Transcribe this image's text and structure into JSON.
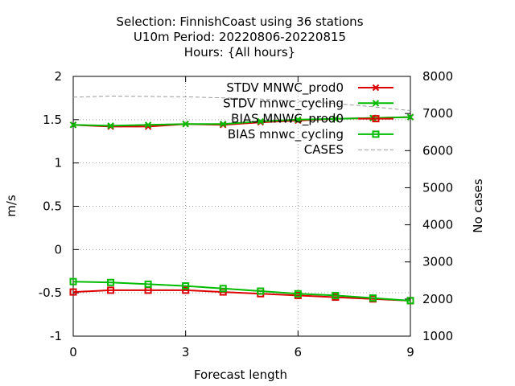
{
  "chart_data": {
    "type": "line",
    "title": [
      "Selection: FinnishCoast using    36 stations",
      "U10m   Period: 20220806-20220815",
      "Hours: {All hours}"
    ],
    "xlabel": "Forecast length",
    "ylabel": "m/s",
    "y2label": "No cases",
    "xlim": [
      0,
      9
    ],
    "ylim": [
      -1,
      2
    ],
    "y2lim": [
      1000,
      8000
    ],
    "x_ticks": [
      "0",
      "3",
      "6",
      "9"
    ],
    "y_ticks": [
      "2",
      "1.5",
      "1",
      "0.5",
      "0",
      "-0.5",
      "-1"
    ],
    "y2_ticks": [
      "8000",
      "7000",
      "6000",
      "5000",
      "4000",
      "3000",
      "2000",
      "1000"
    ],
    "grid": true,
    "legend_position": "top-right",
    "x": [
      0,
      1,
      2,
      3,
      4,
      5,
      6,
      7,
      8,
      9
    ],
    "series": [
      {
        "name": "STDV MNWC_prod0",
        "axis": "left",
        "color": "#dd0000",
        "marker": "cross",
        "values": [
          1.44,
          1.42,
          1.42,
          1.45,
          1.44,
          1.47,
          1.49,
          1.51,
          1.52,
          1.53
        ]
      },
      {
        "name": "STDV mnwc_cycling",
        "axis": "left",
        "color": "#00bb00",
        "marker": "cross",
        "values": [
          1.44,
          1.43,
          1.44,
          1.45,
          1.45,
          1.48,
          1.5,
          1.51,
          1.52,
          1.53
        ]
      },
      {
        "name": "BIAS MNWC_prod0",
        "axis": "left",
        "color": "#dd0000",
        "marker": "square",
        "values": [
          -0.49,
          -0.47,
          -0.47,
          -0.47,
          -0.49,
          -0.51,
          -0.53,
          -0.55,
          -0.57,
          -0.59
        ]
      },
      {
        "name": "BIAS mnwc_cycling",
        "axis": "left",
        "color": "#00bb00",
        "marker": "square",
        "values": [
          -0.37,
          -0.38,
          -0.4,
          -0.42,
          -0.45,
          -0.48,
          -0.51,
          -0.53,
          -0.56,
          -0.59
        ]
      },
      {
        "name": "CASES",
        "axis": "right",
        "color": "#999999",
        "marker": "none",
        "dashed": true,
        "values": [
          7440,
          7470,
          7460,
          7450,
          7420,
          7390,
          7330,
          7270,
          7180,
          7080
        ]
      }
    ]
  }
}
